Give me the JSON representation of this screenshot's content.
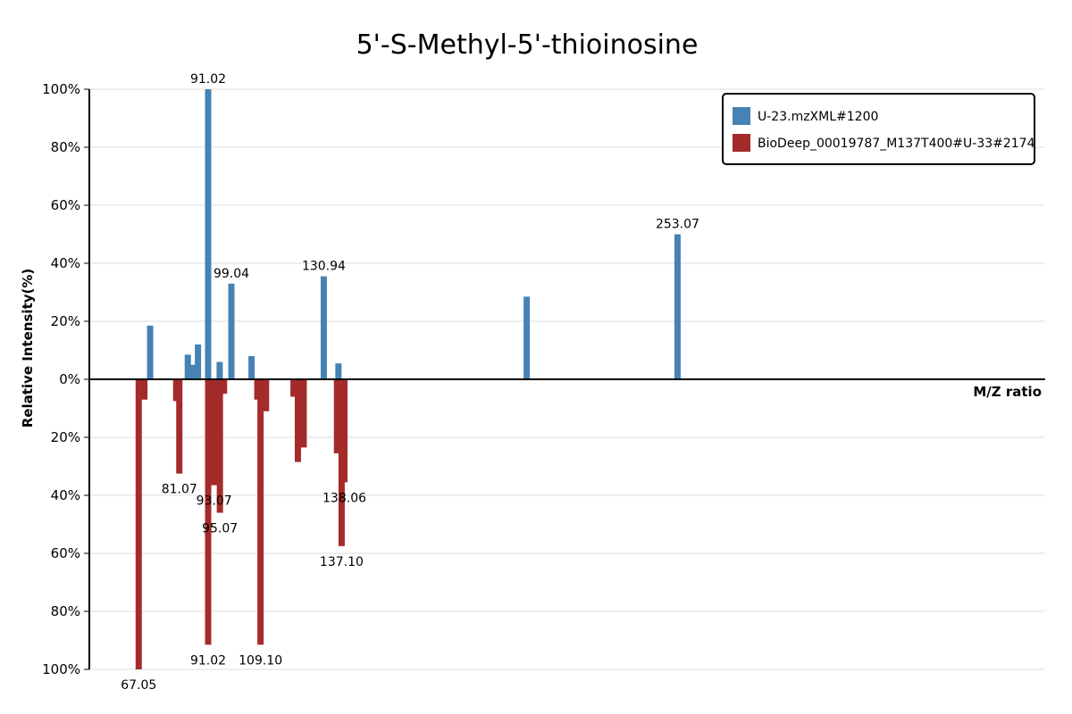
{
  "chart_data": {
    "type": "bar",
    "title": "5'-S-Methyl-5'-thioinosine",
    "xlabel": "M/Z ratio",
    "ylabel": "Relative Intensity(%)",
    "y_ticks": [
      "100%",
      "80%",
      "60%",
      "40%",
      "20%",
      "0%",
      "20%",
      "40%",
      "60%",
      "80%",
      "100%"
    ],
    "ylim": [
      -100,
      100
    ],
    "xlim": [
      50,
      380
    ],
    "grid": true,
    "legend_position": "top-right",
    "series": [
      {
        "name": "U-23.mzXML#1200",
        "color": "#4682b4",
        "direction": "up",
        "points": [
          {
            "mz": 71.0,
            "intensity": 18.5
          },
          {
            "mz": 85.5,
            "intensity": 5
          },
          {
            "mz": 87.5,
            "intensity": 12
          },
          {
            "mz": 55.0,
            "intensity": 0
          },
          {
            "mz": 84.0,
            "intensity": 8.5
          },
          {
            "mz": 91.02,
            "intensity": 100,
            "label": "91.02"
          },
          {
            "mz": 95.0,
            "intensity": 6
          },
          {
            "mz": 99.04,
            "intensity": 33,
            "label": "99.04"
          },
          {
            "mz": 106.0,
            "intensity": 8
          },
          {
            "mz": 130.94,
            "intensity": 35.5,
            "label": "130.94"
          },
          {
            "mz": 136.0,
            "intensity": 5.5
          },
          {
            "mz": 201.0,
            "intensity": 28.5
          },
          {
            "mz": 253.07,
            "intensity": 50,
            "label": "253.07"
          }
        ]
      },
      {
        "name": "BioDeep_00019787_M137T400#U-33#2174",
        "color": "#a52a2a",
        "direction": "down",
        "points": [
          {
            "mz": 69.0,
            "intensity": 7
          },
          {
            "mz": 67.05,
            "intensity": 100,
            "label": "67.05"
          },
          {
            "mz": 80.0,
            "intensity": 7.5
          },
          {
            "mz": 81.07,
            "intensity": 32.5,
            "label": "81.07"
          },
          {
            "mz": 91.02,
            "intensity": 91.5,
            "label": "91.02"
          },
          {
            "mz": 93.07,
            "intensity": 36.5,
            "label": "93.07"
          },
          {
            "mz": 95.07,
            "intensity": 46,
            "label": "95.07"
          },
          {
            "mz": 96.5,
            "intensity": 5
          },
          {
            "mz": 108.0,
            "intensity": 7
          },
          {
            "mz": 109.1,
            "intensity": 91.5,
            "label": "109.10"
          },
          {
            "mz": 111.0,
            "intensity": 11
          },
          {
            "mz": 120.5,
            "intensity": 6
          },
          {
            "mz": 122.0,
            "intensity": 28.5
          },
          {
            "mz": 124.0,
            "intensity": 23.5
          },
          {
            "mz": 135.5,
            "intensity": 25.5
          },
          {
            "mz": 137.1,
            "intensity": 57.5,
            "label": "137.10"
          },
          {
            "mz": 138.06,
            "intensity": 35.5,
            "label": "138.06"
          }
        ]
      }
    ]
  }
}
